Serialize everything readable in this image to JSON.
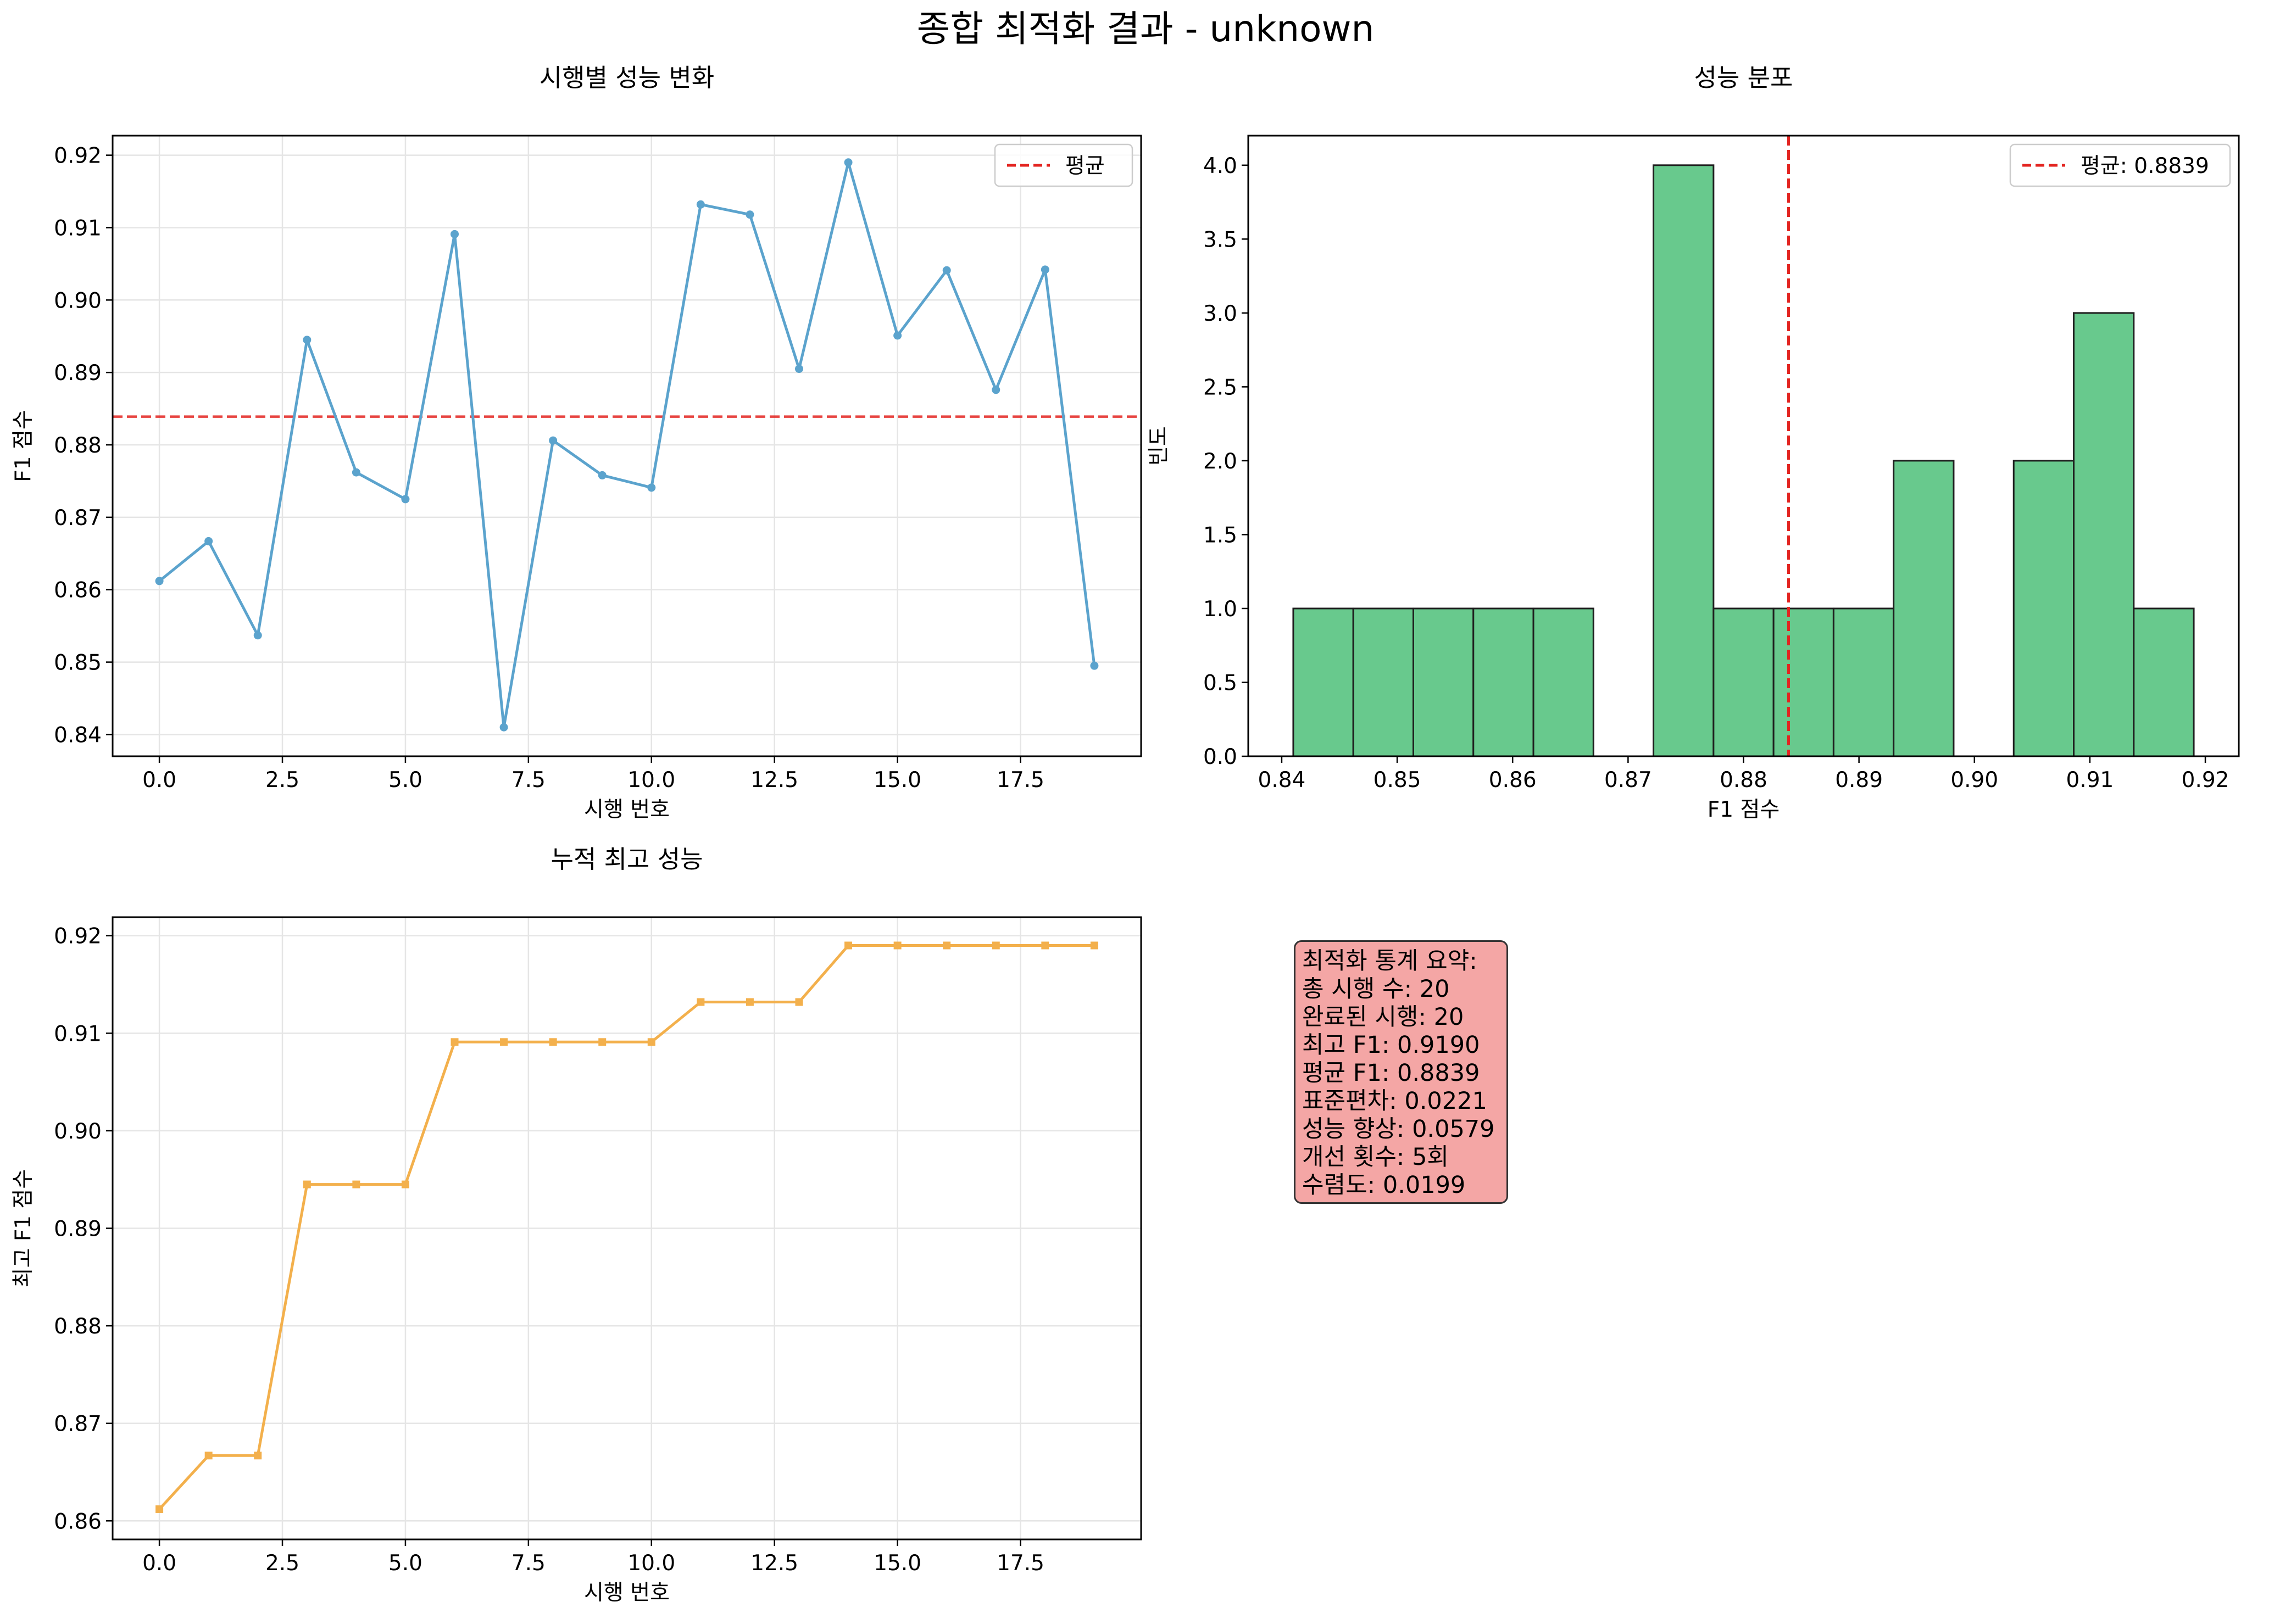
{
  "figure": {
    "suptitle": "종합 최적화 결과 - unknown"
  },
  "colors": {
    "line": "#5ba3cd",
    "cumulative": "#f3b04c",
    "hist": "#68c98d",
    "mean": "#e32420",
    "grid": "#e5e5e5"
  },
  "chart_data": [
    {
      "type": "line",
      "title": "시행별 성능 변화",
      "xlabel": "시행 번호",
      "ylabel": "F1 점수",
      "x": [
        0,
        1,
        2,
        3,
        4,
        5,
        6,
        7,
        8,
        9,
        10,
        11,
        12,
        13,
        14,
        15,
        16,
        17,
        18,
        19
      ],
      "values": [
        0.8612,
        0.8667,
        0.8537,
        0.8945,
        0.8762,
        0.8725,
        0.9091,
        0.841,
        0.8806,
        0.8758,
        0.8741,
        0.9132,
        0.9118,
        0.8905,
        0.919,
        0.8951,
        0.9041,
        0.8876,
        0.9042,
        0.8495
      ],
      "mean_line": 0.8839,
      "legend": [
        "평균"
      ],
      "legend_loc": "top-right",
      "xlim": [
        -0.95,
        19.95
      ],
      "ylim": [
        0.837,
        0.9227
      ],
      "xticks": [
        0.0,
        2.5,
        5.0,
        7.5,
        10.0,
        12.5,
        15.0,
        17.5
      ],
      "xtick_labels": [
        "0.0",
        "2.5",
        "5.0",
        "7.5",
        "10.0",
        "12.5",
        "15.0",
        "17.5"
      ],
      "yticks": [
        0.84,
        0.85,
        0.86,
        0.87,
        0.88,
        0.89,
        0.9,
        0.91,
        0.92
      ],
      "ytick_labels": [
        "0.84",
        "0.85",
        "0.86",
        "0.87",
        "0.88",
        "0.89",
        "0.90",
        "0.91",
        "0.92"
      ],
      "grid": true
    },
    {
      "type": "bar",
      "title": "성능 분포",
      "xlabel": "F1 점수",
      "ylabel": "빈도",
      "bin_edges": [
        0.841,
        0.8462,
        0.8514,
        0.8566,
        0.8618,
        0.867,
        0.8722,
        0.8774,
        0.8826,
        0.8878,
        0.893,
        0.8982,
        0.9034,
        0.9086,
        0.9138,
        0.919
      ],
      "counts": [
        1,
        1,
        1,
        1,
        1,
        0,
        4,
        1,
        1,
        1,
        2,
        0,
        2,
        3,
        1
      ],
      "mean_line": 0.8839,
      "legend": [
        "평균: 0.8839"
      ],
      "legend_loc": "top-right",
      "xlim": [
        0.8371,
        0.9229
      ],
      "ylim": [
        0,
        4.2
      ],
      "xticks": [
        0.84,
        0.85,
        0.86,
        0.87,
        0.88,
        0.89,
        0.9,
        0.91,
        0.92
      ],
      "xtick_labels": [
        "0.84",
        "0.85",
        "0.86",
        "0.87",
        "0.88",
        "0.89",
        "0.90",
        "0.91",
        "0.92"
      ],
      "yticks": [
        0,
        0.5,
        1,
        1.5,
        2,
        2.5,
        3,
        3.5,
        4
      ],
      "ytick_labels": [
        "0.0",
        "0.5",
        "1.0",
        "1.5",
        "2.0",
        "2.5",
        "3.0",
        "3.5",
        "4.0"
      ],
      "grid": false
    },
    {
      "type": "line",
      "title": "누적 최고 성능",
      "xlabel": "시행 번호",
      "ylabel": "최고 F1 점수",
      "x": [
        0,
        1,
        2,
        3,
        4,
        5,
        6,
        7,
        8,
        9,
        10,
        11,
        12,
        13,
        14,
        15,
        16,
        17,
        18,
        19
      ],
      "values": [
        0.8612,
        0.8667,
        0.8667,
        0.8945,
        0.8945,
        0.8945,
        0.9091,
        0.9091,
        0.9091,
        0.9091,
        0.9091,
        0.9132,
        0.9132,
        0.9132,
        0.919,
        0.919,
        0.919,
        0.919,
        0.919,
        0.919
      ],
      "xlim": [
        -0.95,
        19.95
      ],
      "ylim": [
        0.8581,
        0.9219
      ],
      "xticks": [
        0.0,
        2.5,
        5.0,
        7.5,
        10.0,
        12.5,
        15.0,
        17.5
      ],
      "xtick_labels": [
        "0.0",
        "2.5",
        "5.0",
        "7.5",
        "10.0",
        "12.5",
        "15.0",
        "17.5"
      ],
      "yticks": [
        0.86,
        0.87,
        0.88,
        0.89,
        0.9,
        0.91,
        0.92
      ],
      "ytick_labels": [
        "0.86",
        "0.87",
        "0.88",
        "0.89",
        "0.90",
        "0.91",
        "0.92"
      ],
      "grid": true
    }
  ],
  "summary": {
    "lines": [
      "최적화 통계 요약:",
      "총 시행 수: 20",
      "완료된 시행: 20",
      "최고 F1: 0.9190",
      "평균 F1: 0.8839",
      "표준편차: 0.0221",
      "성능 향상: 0.0579",
      "개선 횟수: 5회",
      "수렴도: 0.0199"
    ]
  }
}
